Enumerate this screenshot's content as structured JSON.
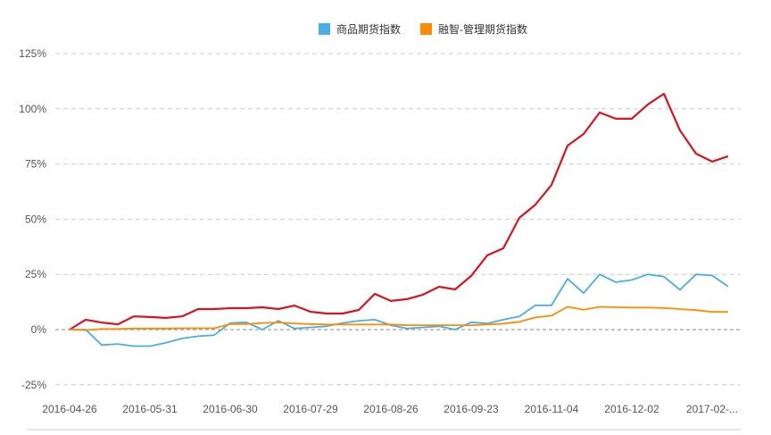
{
  "chart_data": {
    "type": "line",
    "title": "",
    "xlabel": "",
    "ylabel": "",
    "ylim": [
      -25,
      125
    ],
    "yticks": [
      "125%",
      "100%",
      "75%",
      "50%",
      "25%",
      "0%",
      "-25%"
    ],
    "ytick_values": [
      125,
      100,
      75,
      50,
      25,
      0,
      -25
    ],
    "xtick_labels": [
      "2016-04-26",
      "2016-05-31",
      "2016-06-30",
      "2016-07-29",
      "2016-08-26",
      "2016-09-23",
      "2016-11-04",
      "2016-12-02",
      "2017-02-..."
    ],
    "xtick_every": 5,
    "grid": true,
    "legend_position": "top-center",
    "series": [
      {
        "name": "",
        "color": "#d7141f",
        "values": [
          0,
          4.5,
          3.2,
          2.4,
          6,
          5.7,
          5.3,
          6,
          9.3,
          9.3,
          9.7,
          9.7,
          10.1,
          9.3,
          10.9,
          8.1,
          7.3,
          7.3,
          8.9,
          16.2,
          13,
          13.8,
          15.8,
          19.4,
          18.2,
          24.3,
          33.6,
          36.8,
          50.6,
          56.6,
          65.5,
          83.3,
          88.6,
          98.3,
          95.5,
          95.5,
          102,
          106.8,
          90.2,
          79.7,
          76.1,
          78.5
        ]
      },
      {
        "name": "商品期货指数",
        "color": "#4aaee6",
        "values": [
          0,
          0,
          -7,
          -6.5,
          -7.5,
          -7.5,
          -6,
          -4,
          -3,
          -2.5,
          3,
          3.3,
          0,
          4,
          0.5,
          1,
          1.5,
          3,
          4,
          4.5,
          2,
          0.5,
          1,
          1.5,
          0,
          3.3,
          2.8,
          4.5,
          6,
          11,
          11,
          23,
          16.5,
          25,
          21.5,
          22.5,
          25,
          24,
          18,
          25,
          24.5,
          19.5
        ]
      },
      {
        "name": "融智-管理期货指数",
        "color": "#ff8c00",
        "values": [
          0,
          -0.3,
          0.3,
          0.3,
          0.5,
          0.5,
          0.5,
          0.6,
          0.6,
          0.6,
          2.5,
          2.5,
          3,
          3.2,
          2.8,
          2.5,
          2.3,
          2.3,
          2.3,
          2.3,
          2.3,
          2,
          2,
          2,
          2,
          2,
          2.3,
          2.7,
          3.5,
          5.5,
          6.3,
          10.3,
          9,
          10.3,
          10.1,
          10,
          10,
          9.8,
          9.3,
          8.8,
          8,
          8
        ]
      }
    ]
  },
  "legend": [
    {
      "label": "商品期货指数",
      "color": "#4aaee6"
    },
    {
      "label": "融智-管理期货指数",
      "color": "#ff8c00"
    }
  ]
}
